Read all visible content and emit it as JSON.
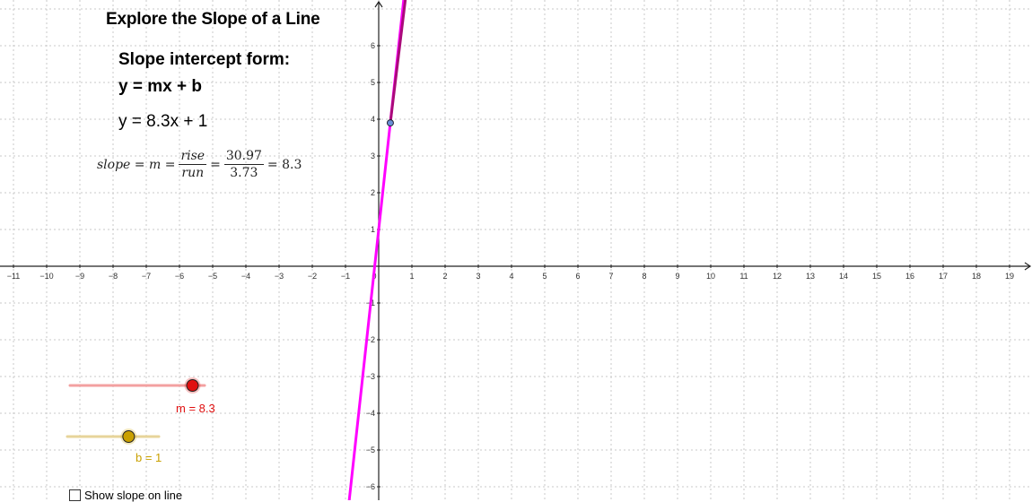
{
  "title": "Explore the Slope of a Line",
  "subtitle": "Slope intercept form:",
  "general_formula": "y = mx + b",
  "current_equation": "y = 8.3x + 1",
  "slope_expression": {
    "lhs": "slope = m =",
    "rise_word": "rise",
    "run_word": "run",
    "rise_value": "30.97",
    "run_value": "3.73",
    "result": "= 8.3",
    "equals": "="
  },
  "axes": {
    "x_ticks": [
      -11,
      -10,
      -9,
      -8,
      -7,
      -6,
      -5,
      -4,
      -3,
      -2,
      -1,
      0,
      1,
      2,
      3,
      4,
      5,
      6,
      7,
      8,
      9,
      10,
      11,
      12,
      13,
      14,
      15,
      16,
      17,
      18,
      19
    ],
    "y_ticks": [
      -6,
      -5,
      -4,
      -3,
      -2,
      -1,
      1,
      2,
      3,
      4,
      5,
      6
    ]
  },
  "line": {
    "m": 8.3,
    "b": 1,
    "color": "#ff00ff",
    "rise_segment_color": "#aa0a7a"
  },
  "point": {
    "x": 0.35,
    "y": 3.9,
    "color": "#6b8fd6"
  },
  "sliders": {
    "m": {
      "label": "m = 8.3",
      "value": 8.3,
      "fraction": 0.91,
      "color": "#e01010",
      "track_color": "#f3a0a0"
    },
    "b": {
      "label": "b = 1",
      "value": 1,
      "fraction": 0.67,
      "color": "#c9a000",
      "track_color": "#e7d49a"
    }
  },
  "checkbox": {
    "label": "Show slope on line",
    "checked": false
  },
  "colors": {
    "grid": "#c8c8c8",
    "axis": "#222222"
  }
}
